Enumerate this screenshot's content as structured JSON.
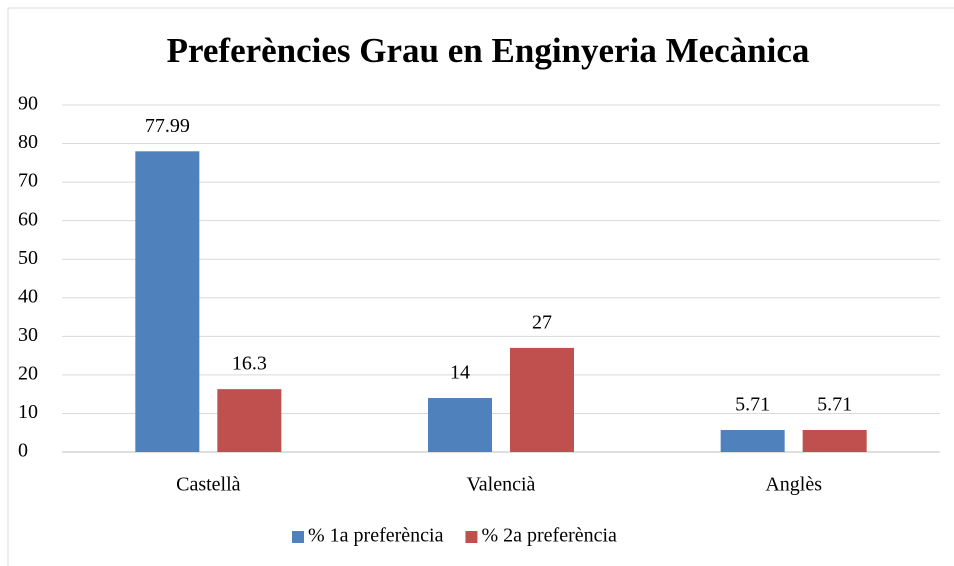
{
  "chart_data": {
    "type": "bar",
    "title": "Preferències Grau en Enginyeria Mecànica",
    "categories": [
      "Castellà",
      "Valencià",
      "Anglès"
    ],
    "series": [
      {
        "name": "% 1a preferència",
        "color": "#4f81bd",
        "values": [
          77.99,
          14,
          5.71
        ]
      },
      {
        "name": "% 2a preferència",
        "color": "#c0504d",
        "values": [
          16.3,
          27,
          5.71
        ]
      }
    ],
    "ylim": [
      0,
      90
    ],
    "yticks": [
      0,
      10,
      20,
      30,
      40,
      50,
      60,
      70,
      80,
      90
    ],
    "grid": true,
    "legend": "bottom"
  }
}
